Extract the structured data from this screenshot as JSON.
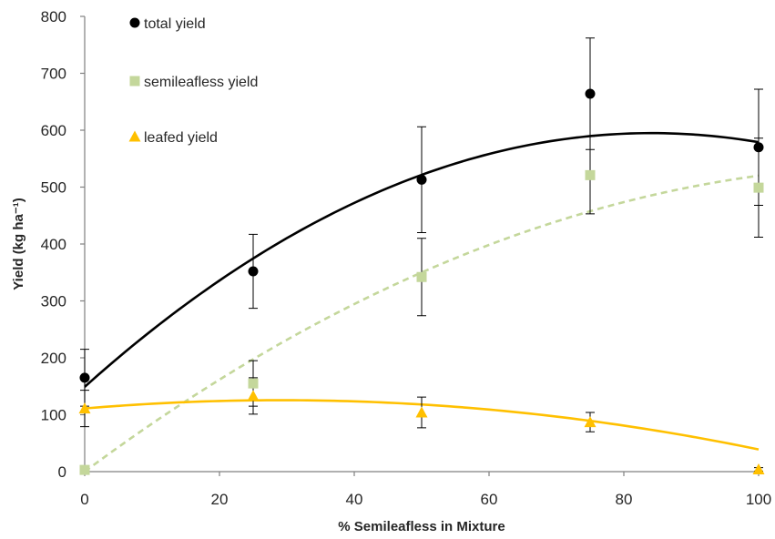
{
  "chart_data": {
    "type": "scatter",
    "xlabel": "% Semileafless in Mixture",
    "ylabel": "Yield (kg ha⁻¹)",
    "xlim": [
      0,
      100
    ],
    "ylim": [
      0,
      800
    ],
    "xticks": [
      0,
      20,
      40,
      60,
      80,
      100
    ],
    "yticks": [
      0,
      100,
      200,
      300,
      400,
      500,
      600,
      700,
      800
    ],
    "xtick_labels": [
      "0",
      "20",
      "40",
      "60",
      "80",
      "100"
    ],
    "ytick_labels": [
      "0",
      "100",
      "200",
      "300",
      "400",
      "500",
      "600",
      "700",
      "800"
    ],
    "grid": false,
    "legend_position": "top-left",
    "series": [
      {
        "name": "total yield",
        "marker": "circle",
        "color": "#000000",
        "x": [
          0,
          25,
          50,
          75,
          100
        ],
        "y": [
          165,
          352,
          513,
          664,
          570
        ],
        "error": [
          50,
          65,
          93,
          98,
          102
        ],
        "trend": {
          "type": "quadratic",
          "coefficients": [
            149,
            10.6,
            -0.063
          ],
          "style": "solid"
        }
      },
      {
        "name": "semileafless yield",
        "marker": "square",
        "color": "#C4D79B",
        "x": [
          0,
          25,
          50,
          75,
          100
        ],
        "y": [
          3,
          155,
          342,
          521,
          499
        ],
        "error": [
          0,
          40,
          68,
          68,
          87
        ],
        "trend": {
          "type": "quadratic",
          "coefficients": [
            0,
            8.8,
            -0.036
          ],
          "style": "dashed"
        }
      },
      {
        "name": "leafed yield",
        "marker": "triangle",
        "color": "#FFC000",
        "x": [
          0,
          25,
          50,
          75,
          100
        ],
        "y": [
          111,
          133,
          104,
          87,
          4
        ],
        "error": [
          32,
          32,
          27,
          17,
          3
        ],
        "trend": {
          "type": "quadratic",
          "coefficients": [
            111,
            1.0,
            -0.0172
          ],
          "style": "solid"
        }
      }
    ]
  }
}
